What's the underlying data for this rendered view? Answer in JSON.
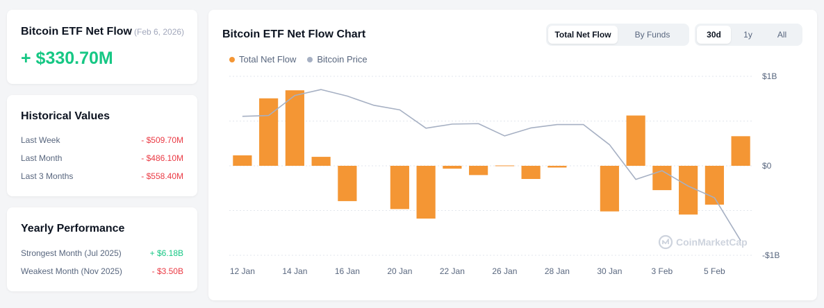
{
  "netflow": {
    "title": "Bitcoin ETF Net Flow",
    "date": "(Feb 6, 2026)",
    "value": "+ $330.70M"
  },
  "historical": {
    "title": "Historical Values",
    "rows": [
      {
        "label": "Last Week",
        "value": "- $509.70M"
      },
      {
        "label": "Last Month",
        "value": "- $486.10M"
      },
      {
        "label": "Last 3 Months",
        "value": "- $558.40M"
      }
    ]
  },
  "yearly": {
    "title": "Yearly Performance",
    "rows": [
      {
        "label": "Strongest Month",
        "period": "(Jul 2025)",
        "value": "+ $6.18B"
      },
      {
        "label": "Weakest Month",
        "period": "(Nov 2025)",
        "value": "- $3.50B"
      }
    ]
  },
  "chart_panel": {
    "title": "Bitcoin ETF Net Flow Chart",
    "type_tabs": [
      "Total Net Flow",
      "By Funds"
    ],
    "range_tabs": [
      "30d",
      "1y",
      "All"
    ],
    "watermark": "CoinMarketCap"
  },
  "colors": {
    "flow": "#f49634",
    "price": "#a6b0c3",
    "positive": "#16c784",
    "negative": "#ea3943"
  },
  "chart_data": {
    "type": "bar",
    "title": "Bitcoin ETF Net Flow Chart",
    "legend": [
      "Total Net Flow",
      "Bitcoin Price"
    ],
    "categories": [
      "12 Jan",
      "13 Jan",
      "14 Jan",
      "15 Jan",
      "16 Jan",
      "17 Jan",
      "20 Jan",
      "21 Jan",
      "22 Jan",
      "23 Jan",
      "26 Jan",
      "27 Jan",
      "28 Jan",
      "29 Jan",
      "30 Jan",
      "2 Feb",
      "3 Feb",
      "4 Feb",
      "5 Feb",
      "6 Feb"
    ],
    "x_tick_labels": [
      "12 Jan",
      "14 Jan",
      "16 Jan",
      "20 Jan",
      "22 Jan",
      "26 Jan",
      "28 Jan",
      "30 Jan",
      "3 Feb",
      "5 Feb"
    ],
    "x_tick_indices": [
      0,
      2,
      4,
      6,
      8,
      10,
      12,
      14,
      16,
      18
    ],
    "y_tick_labels": [
      "$1B",
      "$0",
      "-$1B"
    ],
    "ylim": [
      -1000,
      1000
    ],
    "series": [
      {
        "name": "Total Net Flow",
        "unit": "M USD",
        "values": [
          116.7,
          753.8,
          843.6,
          100.2,
          -394.7,
          null,
          -483.4,
          -590.0,
          -32.1,
          -103.6,
          6.8,
          -147.4,
          -19.6,
          null,
          -509.7,
          561.9,
          -272.0,
          -544.9,
          -434.1,
          330.7
        ]
      },
      {
        "name": "Bitcoin Price",
        "normalized": true,
        "values": [
          0.553,
          0.562,
          0.786,
          0.852,
          0.779,
          0.677,
          0.625,
          0.42,
          0.466,
          0.471,
          0.334,
          0.423,
          0.461,
          0.461,
          0.235,
          -0.152,
          -0.055,
          -0.227,
          -0.357,
          -0.838
        ]
      }
    ]
  }
}
